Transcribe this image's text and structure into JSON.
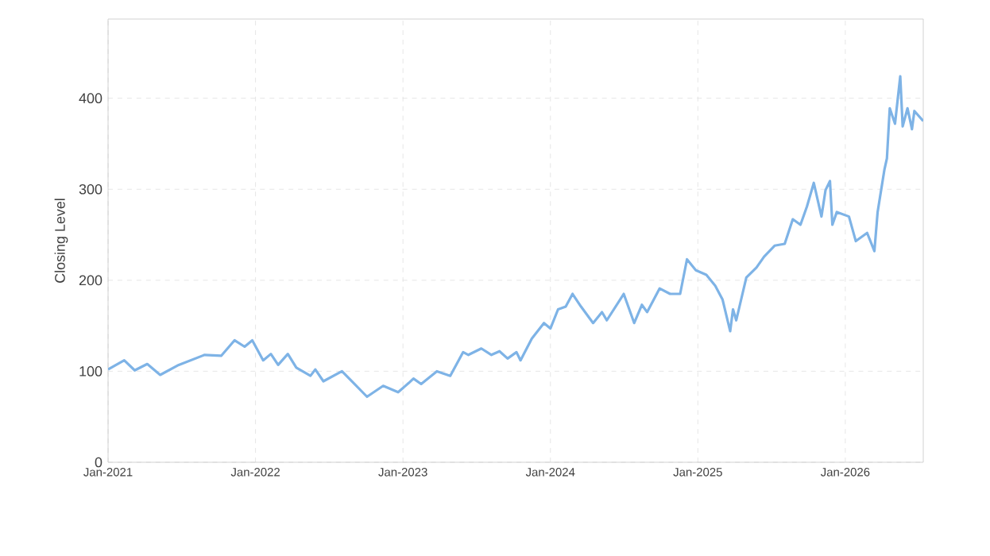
{
  "chart_data": {
    "type": "line",
    "ylabel": "Closing Level",
    "x": [
      "2021-01-01",
      "2021-02-10",
      "2021-03-08",
      "2021-04-08",
      "2021-05-10",
      "2021-06-25",
      "2021-08-28",
      "2021-10-08",
      "2021-11-10",
      "2021-12-05",
      "2021-12-24",
      "2022-01-20",
      "2022-02-08",
      "2022-02-26",
      "2022-03-22",
      "2022-04-12",
      "2022-05-17",
      "2022-05-29",
      "2022-06-18",
      "2022-08-03",
      "2022-09-03",
      "2022-10-04",
      "2022-11-13",
      "2022-12-20",
      "2023-01-15",
      "2023-01-27",
      "2023-02-15",
      "2023-03-26",
      "2023-04-28",
      "2023-05-30",
      "2023-06-12",
      "2023-07-14",
      "2023-08-08",
      "2023-08-28",
      "2023-09-17",
      "2023-10-09",
      "2023-10-19",
      "2023-11-16",
      "2023-12-16",
      "2024-01-01",
      "2024-01-20",
      "2024-02-08",
      "2024-02-25",
      "2024-03-17",
      "2024-04-16",
      "2024-05-08",
      "2024-05-20",
      "2024-07-01",
      "2024-07-27",
      "2024-08-15",
      "2024-08-28",
      "2024-09-28",
      "2024-10-24",
      "2024-11-18",
      "2024-12-05",
      "2024-12-27",
      "2025-01-22",
      "2025-02-13",
      "2025-03-03",
      "2025-03-22",
      "2025-03-29",
      "2025-04-06",
      "2025-05-01",
      "2025-05-26",
      "2025-06-14",
      "2025-07-10",
      "2025-08-04",
      "2025-08-24",
      "2025-09-12",
      "2025-09-28",
      "2025-10-15",
      "2025-11-03",
      "2025-11-13",
      "2025-11-24",
      "2025-11-30",
      "2025-12-11",
      "2026-01-10",
      "2026-01-27",
      "2026-02-24",
      "2026-03-14",
      "2026-03-22",
      "2026-04-08",
      "2026-04-14",
      "2026-04-21",
      "2026-05-04",
      "2026-05-17",
      "2026-05-23",
      "2026-06-04",
      "2026-06-15",
      "2026-06-21",
      "2026-07-13"
    ],
    "series": [
      {
        "color": "#7eb3e6",
        "values": [
          102,
          112,
          101,
          108,
          96,
          107,
          118,
          117,
          134,
          127,
          134,
          112,
          119,
          107,
          119,
          104,
          95,
          102,
          89,
          100,
          86,
          72,
          84,
          77,
          87,
          92,
          86,
          100,
          95,
          121,
          118,
          125,
          118,
          122,
          114,
          121,
          112,
          136,
          153,
          147,
          168,
          171,
          185,
          171,
          153,
          165,
          156,
          185,
          153,
          173,
          165,
          191,
          185,
          185,
          223,
          211,
          206,
          194,
          179,
          144,
          168,
          156,
          203,
          214,
          226,
          238,
          240,
          267,
          261,
          281,
          307,
          270,
          299,
          309,
          261,
          275,
          270,
          243,
          252,
          232,
          275,
          322,
          334,
          389,
          372,
          424,
          369,
          389,
          366,
          386,
          375
        ]
      }
    ],
    "xlim": [
      "2021-01-01",
      "2026-07-13"
    ],
    "ylim": [
      0,
      487
    ],
    "xticks": [
      {
        "value": "2021-01-01",
        "label": "Jan-2021"
      },
      {
        "value": "2022-01-01",
        "label": "Jan-2022"
      },
      {
        "value": "2023-01-01",
        "label": "Jan-2023"
      },
      {
        "value": "2024-01-01",
        "label": "Jan-2024"
      },
      {
        "value": "2025-01-01",
        "label": "Jan-2025"
      },
      {
        "value": "2026-01-01",
        "label": "Jan-2026"
      }
    ],
    "yticks": [
      0,
      100,
      200,
      300,
      400
    ],
    "grid": true,
    "marker": "none",
    "line_style": "solid"
  }
}
